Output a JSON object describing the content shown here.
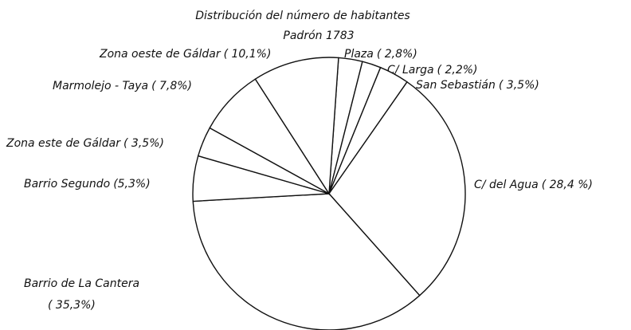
{
  "chart_data": {
    "type": "pie",
    "title": "Distribución del número de habitantes",
    "subtitle": "Padrón 1783",
    "categories": [
      "Plaza",
      "C/ Larga",
      "San Sebastián",
      "C/ del Agua",
      "Barrio de La Cantera",
      "Barrio Segundo",
      "Zona este de Gáldar",
      "Marmolejo - Taya",
      "Zona oeste de Gáldar"
    ],
    "values": [
      2.8,
      2.2,
      3.5,
      28.4,
      35.3,
      5.3,
      3.5,
      7.8,
      10.1
    ],
    "value_labels": [
      "( 2,8%)",
      "( 2,2%)",
      "( 3,5%)",
      "( 28,4 %)",
      "( 35,3%)",
      "(5,3%)",
      "( 3,5%)",
      "( 7,8%)",
      "( 10,1%)"
    ],
    "color": "#ffffff"
  }
}
